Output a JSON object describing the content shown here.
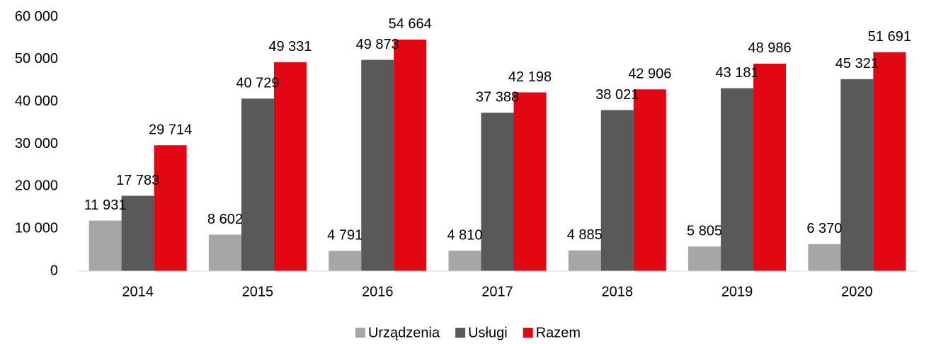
{
  "chart_data": {
    "type": "bar",
    "categories": [
      "2014",
      "2015",
      "2016",
      "2017",
      "2018",
      "2019",
      "2020"
    ],
    "series": [
      {
        "name": "Urządzenia",
        "color": "#a6a6a6",
        "values": [
          11931,
          8602,
          4791,
          4810,
          4885,
          5805,
          6370
        ],
        "value_labels": [
          "11 931",
          "8 602",
          "4 791",
          "4 810",
          "4 885",
          "5 805",
          "6 370"
        ]
      },
      {
        "name": "Usługi",
        "color": "#595959",
        "values": [
          17783,
          40729,
          49873,
          37388,
          38021,
          43181,
          45321
        ],
        "value_labels": [
          "17 783",
          "40 729",
          "49 873",
          "37 388",
          "38 021",
          "43 181",
          "45 321"
        ]
      },
      {
        "name": "Razem",
        "color": "#e30613",
        "values": [
          29714,
          49331,
          54664,
          42198,
          42906,
          48986,
          51691
        ],
        "value_labels": [
          "29 714",
          "49 331",
          "54 664",
          "42 198",
          "42 906",
          "48 986",
          "51 691"
        ]
      }
    ],
    "ylim": [
      0,
      60000
    ],
    "yticks": [
      {
        "value": 0,
        "label": "0"
      },
      {
        "value": 10000,
        "label": "10 000"
      },
      {
        "value": 20000,
        "label": "20 000"
      },
      {
        "value": 30000,
        "label": "30 000"
      },
      {
        "value": 40000,
        "label": "40 000"
      },
      {
        "value": 50000,
        "label": "50 000"
      },
      {
        "value": 60000,
        "label": "60 000"
      }
    ],
    "grid": false,
    "legend": "bottom"
  }
}
